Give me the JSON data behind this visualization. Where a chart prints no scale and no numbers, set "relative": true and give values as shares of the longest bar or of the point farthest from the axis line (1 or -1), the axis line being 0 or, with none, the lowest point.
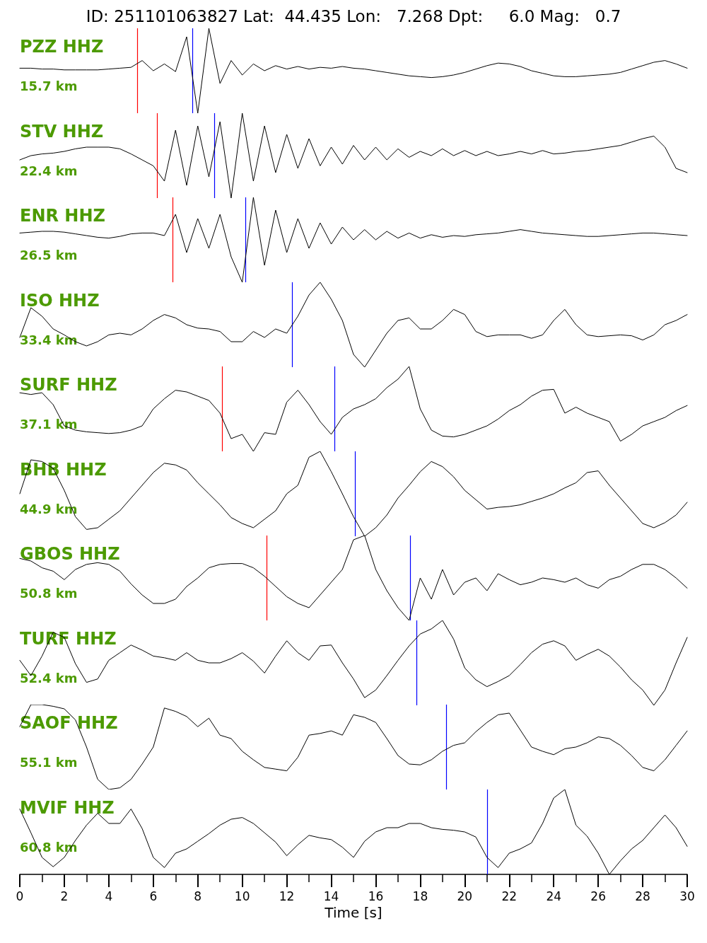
{
  "chart_data": [
    {
      "type": "line",
      "title": "ID: 251101063827 Lat:  44.435 Lon:   7.268 Dpt:     6.0 Mag:   0.7",
      "relative": true,
      "tick_labels": false,
      "xlim": [
        0,
        30
      ],
      "xticks": [
        0,
        2,
        4,
        6,
        8,
        10,
        12,
        14,
        16,
        18,
        20,
        22,
        24,
        26,
        28,
        30
      ],
      "annotations": [
        "PZZ HHZ",
        "15.7 km"
      ],
      "ref_lines": [
        {
          "axis": "x",
          "value": 5.28,
          "color": "#ff0000"
        },
        {
          "axis": "x",
          "value": 7.75,
          "color": "#0000ff"
        }
      ],
      "x": [
        0,
        0.5,
        1,
        1.5,
        2,
        2.5,
        3,
        3.5,
        4,
        4.5,
        5,
        5.5,
        6,
        6.5,
        7,
        7.5,
        8,
        8.5,
        9,
        9.5,
        10,
        10.5,
        11,
        11.5,
        12,
        12.5,
        13,
        13.5,
        14,
        14.5,
        15,
        15.5,
        16,
        16.5,
        17,
        17.5,
        18,
        18.5,
        19,
        19.5,
        20,
        20.5,
        21,
        21.5,
        22,
        22.5,
        23,
        23.5,
        24,
        24.5,
        25,
        25.5,
        26,
        26.5,
        27,
        27.5,
        28,
        28.5,
        29,
        29.5,
        30
      ],
      "series": [
        {
          "color": "#000000",
          "values": [
            0.53,
            0.53,
            0.52,
            0.52,
            0.51,
            0.51,
            0.51,
            0.51,
            0.52,
            0.53,
            0.54,
            0.62,
            0.5,
            0.58,
            0.49,
            0.9,
            0,
            1,
            0.35,
            0.62,
            0.45,
            0.58,
            0.5,
            0.56,
            0.52,
            0.55,
            0.52,
            0.54,
            0.53,
            0.55,
            0.53,
            0.52,
            0.5,
            0.48,
            0.46,
            0.44,
            0.43,
            0.42,
            0.43,
            0.45,
            0.48,
            0.52,
            0.56,
            0.59,
            0.58,
            0.55,
            0.5,
            0.47,
            0.44,
            0.43,
            0.43,
            0.44,
            0.45,
            0.46,
            0.48,
            0.52,
            0.56,
            0.6,
            0.62,
            0.58,
            0.53
          ]
        }
      ]
    },
    {
      "type": "line",
      "relative": true,
      "tick_labels": false,
      "xlim": [
        0,
        30
      ],
      "xticks": [
        0,
        2,
        4,
        6,
        8,
        10,
        12,
        14,
        16,
        18,
        20,
        22,
        24,
        26,
        28,
        30
      ],
      "annotations": [
        "STV HHZ",
        "22.4 km"
      ],
      "ref_lines": [
        {
          "axis": "x",
          "value": 6.17,
          "color": "#ff0000"
        },
        {
          "axis": "x",
          "value": 8.74,
          "color": "#0000ff"
        }
      ],
      "x": [
        0,
        0.5,
        1,
        1.5,
        2,
        2.5,
        3,
        3.5,
        4,
        4.5,
        5,
        5.5,
        6,
        6.5,
        7,
        7.5,
        8,
        8.5,
        9,
        9.5,
        10,
        10.5,
        11,
        11.5,
        12,
        12.5,
        13,
        13.5,
        14,
        14.5,
        15,
        15.5,
        16,
        16.5,
        17,
        17.5,
        18,
        18.5,
        19,
        19.5,
        20,
        20.5,
        21,
        21.5,
        22,
        22.5,
        23,
        23.5,
        24,
        24.5,
        25,
        25.5,
        26,
        26.5,
        27,
        27.5,
        28,
        28.5,
        29,
        29.5,
        30
      ],
      "series": [
        {
          "color": "#000000",
          "values": [
            0.45,
            0.5,
            0.52,
            0.53,
            0.55,
            0.58,
            0.6,
            0.6,
            0.6,
            0.58,
            0.52,
            0.45,
            0.38,
            0.2,
            0.8,
            0.15,
            0.85,
            0.25,
            0.9,
            0,
            1,
            0.2,
            0.85,
            0.3,
            0.75,
            0.35,
            0.7,
            0.38,
            0.6,
            0.4,
            0.62,
            0.45,
            0.6,
            0.45,
            0.58,
            0.48,
            0.55,
            0.5,
            0.58,
            0.5,
            0.56,
            0.5,
            0.55,
            0.5,
            0.52,
            0.55,
            0.52,
            0.56,
            0.52,
            0.53,
            0.55,
            0.56,
            0.58,
            0.6,
            0.62,
            0.66,
            0.7,
            0.73,
            0.6,
            0.35,
            0.3
          ]
        }
      ]
    },
    {
      "type": "line",
      "relative": true,
      "tick_labels": false,
      "xlim": [
        0,
        30
      ],
      "xticks": [
        0,
        2,
        4,
        6,
        8,
        10,
        12,
        14,
        16,
        18,
        20,
        22,
        24,
        26,
        28,
        30
      ],
      "annotations": [
        "ENR HHZ",
        "26.5 km"
      ],
      "ref_lines": [
        {
          "axis": "x",
          "value": 6.86,
          "color": "#ff0000"
        },
        {
          "axis": "x",
          "value": 10.14,
          "color": "#0000ff"
        }
      ],
      "x": [
        0,
        0.5,
        1,
        1.5,
        2,
        2.5,
        3,
        3.5,
        4,
        4.5,
        5,
        5.5,
        6,
        6.5,
        7,
        7.5,
        8,
        8.5,
        9,
        9.5,
        10,
        10.5,
        11,
        11.5,
        12,
        12.5,
        13,
        13.5,
        14,
        14.5,
        15,
        15.5,
        16,
        16.5,
        17,
        17.5,
        18,
        18.5,
        19,
        19.5,
        20,
        20.5,
        21,
        21.5,
        22,
        22.5,
        23,
        23.5,
        24,
        24.5,
        25,
        25.5,
        26,
        26.5,
        27,
        27.5,
        28,
        28.5,
        29,
        29.5,
        30
      ],
      "series": [
        {
          "color": "#000000",
          "values": [
            0.58,
            0.59,
            0.6,
            0.6,
            0.59,
            0.57,
            0.55,
            0.53,
            0.52,
            0.54,
            0.57,
            0.58,
            0.58,
            0.55,
            0.8,
            0.35,
            0.75,
            0.4,
            0.8,
            0.3,
            0,
            1,
            0.2,
            0.85,
            0.35,
            0.75,
            0.4,
            0.7,
            0.45,
            0.65,
            0.5,
            0.62,
            0.5,
            0.6,
            0.52,
            0.58,
            0.52,
            0.56,
            0.53,
            0.55,
            0.54,
            0.56,
            0.57,
            0.58,
            0.6,
            0.62,
            0.6,
            0.58,
            0.57,
            0.56,
            0.55,
            0.54,
            0.54,
            0.55,
            0.56,
            0.57,
            0.58,
            0.58,
            0.57,
            0.56,
            0.55
          ]
        }
      ]
    },
    {
      "type": "line",
      "relative": true,
      "tick_labels": false,
      "xlim": [
        0,
        30
      ],
      "xticks": [
        0,
        2,
        4,
        6,
        8,
        10,
        12,
        14,
        16,
        18,
        20,
        22,
        24,
        26,
        28,
        30
      ],
      "annotations": [
        "ISO HHZ",
        "33.4 km"
      ],
      "ref_lines": [
        {
          "axis": "x",
          "value": 12.23,
          "color": "#0000ff"
        }
      ],
      "x": [
        0,
        0.5,
        1,
        1.5,
        2,
        2.5,
        3,
        3.5,
        4,
        4.5,
        5,
        5.5,
        6,
        6.5,
        7,
        7.5,
        8,
        8.5,
        9,
        9.5,
        10,
        10.5,
        11,
        11.5,
        12,
        12.5,
        13,
        13.5,
        14,
        14.5,
        15,
        15.5,
        16,
        16.5,
        17,
        17.5,
        18,
        18.5,
        19,
        19.5,
        20,
        20.5,
        21,
        21.5,
        22,
        22.5,
        23,
        23.5,
        24,
        24.5,
        25,
        25.5,
        26,
        26.5,
        27,
        27.5,
        28,
        28.5,
        29,
        29.5,
        30
      ],
      "series": [
        {
          "color": "#000000",
          "values": [
            0.35,
            0.7,
            0.6,
            0.45,
            0.38,
            0.3,
            0.25,
            0.3,
            0.38,
            0.4,
            0.38,
            0.45,
            0.55,
            0.62,
            0.58,
            0.5,
            0.46,
            0.45,
            0.42,
            0.3,
            0.3,
            0.42,
            0.35,
            0.45,
            0.4,
            0.6,
            0.85,
            1,
            0.8,
            0.55,
            0.15,
            0,
            0.2,
            0.4,
            0.55,
            0.58,
            0.45,
            0.45,
            0.55,
            0.68,
            0.62,
            0.42,
            0.36,
            0.38,
            0.38,
            0.38,
            0.34,
            0.38,
            0.55,
            0.68,
            0.5,
            0.38,
            0.36,
            0.37,
            0.38,
            0.37,
            0.32,
            0.38,
            0.5,
            0.55,
            0.62
          ]
        }
      ]
    },
    {
      "type": "line",
      "relative": true,
      "tick_labels": false,
      "xlim": [
        0,
        30
      ],
      "xticks": [
        0,
        2,
        4,
        6,
        8,
        10,
        12,
        14,
        16,
        18,
        20,
        22,
        24,
        26,
        28,
        30
      ],
      "annotations": [
        "SURF HHZ",
        "37.1 km"
      ],
      "ref_lines": [
        {
          "axis": "x",
          "value": 9.09,
          "color": "#ff0000"
        },
        {
          "axis": "x",
          "value": 14.14,
          "color": "#0000ff"
        }
      ],
      "x": [
        0,
        0.5,
        1,
        1.5,
        2,
        2.5,
        3,
        3.5,
        4,
        4.5,
        5,
        5.5,
        6,
        6.5,
        7,
        7.5,
        8,
        8.5,
        9,
        9.5,
        10,
        10.5,
        11,
        11.5,
        12,
        12.5,
        13,
        13.5,
        14,
        14.5,
        15,
        15.5,
        16,
        16.5,
        17,
        17.5,
        18,
        18.5,
        19,
        19.5,
        20,
        20.5,
        21,
        21.5,
        22,
        22.5,
        23,
        23.5,
        24,
        24.5,
        25,
        25.5,
        26,
        26.5,
        27,
        27.5,
        28,
        28.5,
        29,
        29.5,
        30
      ],
      "series": [
        {
          "color": "#000000",
          "values": [
            0.69,
            0.67,
            0.69,
            0.55,
            0.3,
            0.25,
            0.23,
            0.22,
            0.21,
            0.22,
            0.25,
            0.3,
            0.5,
            0.62,
            0.72,
            0.7,
            0.65,
            0.6,
            0.45,
            0.15,
            0.2,
            0,
            0.22,
            0.2,
            0.58,
            0.72,
            0.55,
            0.35,
            0.2,
            0.4,
            0.5,
            0.55,
            0.62,
            0.75,
            0.85,
            1,
            0.5,
            0.25,
            0.18,
            0.17,
            0.2,
            0.25,
            0.3,
            0.38,
            0.48,
            0.55,
            0.65,
            0.72,
            0.73,
            0.45,
            0.52,
            0.45,
            0.4,
            0.35,
            0.12,
            0.2,
            0.3,
            0.35,
            0.4,
            0.48,
            0.54
          ]
        }
      ]
    },
    {
      "type": "line",
      "relative": true,
      "tick_labels": false,
      "xlim": [
        0,
        30
      ],
      "xticks": [
        0,
        2,
        4,
        6,
        8,
        10,
        12,
        14,
        16,
        18,
        20,
        22,
        24,
        26,
        28,
        30
      ],
      "annotations": [
        "BHB HHZ",
        "44.9 km"
      ],
      "ref_lines": [
        {
          "axis": "x",
          "value": 15.06,
          "color": "#0000ff"
        }
      ],
      "x": [
        0,
        0.5,
        1,
        1.5,
        2,
        2.5,
        3,
        3.5,
        4,
        4.5,
        5,
        5.5,
        6,
        6.5,
        7,
        7.5,
        8,
        8.5,
        9,
        9.5,
        10,
        10.5,
        11,
        11.5,
        12,
        12.5,
        13,
        13.5,
        14,
        14.5,
        15,
        15.5,
        16,
        16.5,
        17,
        17.5,
        18,
        18.5,
        19,
        19.5,
        20,
        20.5,
        21,
        21.5,
        22,
        22.5,
        23,
        23.5,
        24,
        24.5,
        25,
        25.5,
        26,
        26.5,
        27,
        27.5,
        28,
        28.5,
        29,
        29.5,
        30
      ],
      "series": [
        {
          "color": "#000000",
          "values": [
            0.5,
            0.9,
            0.88,
            0.8,
            0.54,
            0.23,
            0.08,
            0.1,
            0.2,
            0.3,
            0.45,
            0.6,
            0.75,
            0.86,
            0.84,
            0.78,
            0.63,
            0.5,
            0.37,
            0.22,
            0.15,
            0.1,
            0.2,
            0.3,
            0.5,
            0.6,
            0.93,
            1,
            0.76,
            0.5,
            0.23,
            0,
            0.1,
            0.25,
            0.45,
            0.6,
            0.76,
            0.88,
            0.82,
            0.7,
            0.54,
            0.43,
            0.32,
            0.34,
            0.35,
            0.37,
            0.41,
            0.45,
            0.5,
            0.57,
            0.63,
            0.75,
            0.77,
            0.6,
            0.45,
            0.3,
            0.15,
            0.1,
            0.16,
            0.25,
            0.4
          ]
        }
      ]
    },
    {
      "type": "line",
      "relative": true,
      "tick_labels": false,
      "xlim": [
        0,
        30
      ],
      "xticks": [
        0,
        2,
        4,
        6,
        8,
        10,
        12,
        14,
        16,
        18,
        20,
        22,
        24,
        26,
        28,
        30
      ],
      "annotations": [
        "GBOS HHZ",
        "50.8 km"
      ],
      "ref_lines": [
        {
          "axis": "x",
          "value": 11.09,
          "color": "#ff0000"
        },
        {
          "axis": "x",
          "value": 17.54,
          "color": "#0000ff"
        }
      ],
      "x": [
        0,
        0.5,
        1,
        1.5,
        2,
        2.5,
        3,
        3.5,
        4,
        4.5,
        5,
        5.5,
        6,
        6.5,
        7,
        7.5,
        8,
        8.5,
        9,
        9.5,
        10,
        10.5,
        11,
        11.5,
        12,
        12.5,
        13,
        13.5,
        14,
        14.5,
        15,
        15.5,
        16,
        16.5,
        17,
        17.5,
        18,
        18.5,
        19,
        19.5,
        20,
        20.5,
        21,
        21.5,
        22,
        22.5,
        23,
        23.5,
        24,
        24.5,
        25,
        25.5,
        26,
        26.5,
        27,
        27.5,
        28,
        28.5,
        29,
        29.5,
        30
      ],
      "series": [
        {
          "color": "#000000",
          "values": [
            0.73,
            0.7,
            0.62,
            0.58,
            0.48,
            0.6,
            0.66,
            0.68,
            0.66,
            0.58,
            0.43,
            0.3,
            0.2,
            0.2,
            0.25,
            0.4,
            0.5,
            0.62,
            0.66,
            0.67,
            0.67,
            0.62,
            0.52,
            0.4,
            0.28,
            0.2,
            0.15,
            0.3,
            0.45,
            0.6,
            0.95,
            1,
            0.6,
            0.35,
            0.15,
            0,
            0.5,
            0.25,
            0.6,
            0.3,
            0.45,
            0.5,
            0.35,
            0.55,
            0.48,
            0.42,
            0.45,
            0.5,
            0.48,
            0.45,
            0.5,
            0.42,
            0.38,
            0.48,
            0.52,
            0.6,
            0.66,
            0.66,
            0.6,
            0.5,
            0.38
          ]
        }
      ]
    },
    {
      "type": "line",
      "relative": true,
      "tick_labels": false,
      "xlim": [
        0,
        30
      ],
      "xticks": [
        0,
        2,
        4,
        6,
        8,
        10,
        12,
        14,
        16,
        18,
        20,
        22,
        24,
        26,
        28,
        30
      ],
      "annotations": [
        "TURF HHZ",
        "52.4 km"
      ],
      "ref_lines": [
        {
          "axis": "x",
          "value": 17.83,
          "color": "#0000ff"
        }
      ],
      "x": [
        0,
        0.5,
        1,
        1.5,
        2,
        2.5,
        3,
        3.5,
        4,
        4.5,
        5,
        5.5,
        6,
        6.5,
        7,
        7.5,
        8,
        8.5,
        9,
        9.5,
        10,
        10.5,
        11,
        11.5,
        12,
        12.5,
        13,
        13.5,
        14,
        14.5,
        15,
        15.5,
        16,
        16.5,
        17,
        17.5,
        18,
        18.5,
        19,
        19.5,
        20,
        20.5,
        21,
        21.5,
        22,
        22.5,
        23,
        23.5,
        24,
        24.5,
        25,
        25.5,
        26,
        26.5,
        27,
        27.5,
        28,
        28.5,
        29,
        29.5,
        30
      ],
      "series": [
        {
          "color": "#000000",
          "values": [
            0.53,
            0.35,
            0.58,
            0.86,
            0.8,
            0.49,
            0.27,
            0.31,
            0.53,
            0.62,
            0.71,
            0.65,
            0.58,
            0.56,
            0.53,
            0.62,
            0.53,
            0.5,
            0.5,
            0.55,
            0.62,
            0.52,
            0.38,
            0.58,
            0.76,
            0.62,
            0.53,
            0.7,
            0.71,
            0.5,
            0.31,
            0.09,
            0.18,
            0.35,
            0.53,
            0.7,
            0.84,
            0.9,
            1,
            0.78,
            0.44,
            0.3,
            0.22,
            0.28,
            0.35,
            0.48,
            0.62,
            0.72,
            0.76,
            0.7,
            0.53,
            0.6,
            0.66,
            0.58,
            0.45,
            0.3,
            0.18,
            0,
            0.18,
            0.5,
            0.8
          ]
        }
      ]
    },
    {
      "type": "line",
      "relative": true,
      "tick_labels": false,
      "xlim": [
        0,
        30
      ],
      "xticks": [
        0,
        2,
        4,
        6,
        8,
        10,
        12,
        14,
        16,
        18,
        20,
        22,
        24,
        26,
        28,
        30
      ],
      "annotations": [
        "SAOF HHZ",
        "55.1 km"
      ],
      "ref_lines": [
        {
          "axis": "x",
          "value": 19.16,
          "color": "#0000ff"
        }
      ],
      "x": [
        0,
        0.5,
        1,
        1.5,
        2,
        2.5,
        3,
        3.5,
        4,
        4.5,
        5,
        5.5,
        6,
        6.5,
        7,
        7.5,
        8,
        8.5,
        9,
        9.5,
        10,
        10.5,
        11,
        11.5,
        12,
        12.5,
        13,
        13.5,
        14,
        14.5,
        15,
        15.5,
        16,
        16.5,
        17,
        17.5,
        18,
        18.5,
        19,
        19.5,
        20,
        20.5,
        21,
        21.5,
        22,
        22.5,
        23,
        23.5,
        24,
        24.5,
        25,
        25.5,
        26,
        26.5,
        27,
        27.5,
        28,
        28.5,
        29,
        29.5,
        30
      ],
      "series": [
        {
          "color": "#000000",
          "values": [
            0.74,
            1,
            1,
            0.98,
            0.95,
            0.82,
            0.5,
            0.12,
            0,
            0.02,
            0.12,
            0.3,
            0.5,
            0.96,
            0.92,
            0.86,
            0.74,
            0.84,
            0.64,
            0.6,
            0.45,
            0.35,
            0.26,
            0.24,
            0.22,
            0.38,
            0.64,
            0.66,
            0.69,
            0.64,
            0.88,
            0.85,
            0.79,
            0.6,
            0.4,
            0.3,
            0.29,
            0.35,
            0.45,
            0.52,
            0.55,
            0.68,
            0.79,
            0.88,
            0.9,
            0.7,
            0.5,
            0.45,
            0.41,
            0.48,
            0.5,
            0.55,
            0.62,
            0.6,
            0.52,
            0.4,
            0.26,
            0.22,
            0.35,
            0.52,
            0.69
          ]
        }
      ]
    },
    {
      "type": "line",
      "relative": true,
      "tick_labels": "x",
      "xlim": [
        0,
        30
      ],
      "xlabel": "Time [s]",
      "annotations": [
        "MVIF HHZ",
        "60.8 km"
      ],
      "xticks": [
        0,
        {
          "value": 1,
          "label": null
        },
        2,
        {
          "value": 3,
          "label": null
        },
        4,
        {
          "value": 5,
          "label": null
        },
        6,
        {
          "value": 7,
          "label": null
        },
        8,
        {
          "value": 9,
          "label": null
        },
        10,
        {
          "value": 11,
          "label": null
        },
        12,
        {
          "value": 13,
          "label": null
        },
        14,
        {
          "value": 15,
          "label": null
        },
        16,
        {
          "value": 17,
          "label": null
        },
        18,
        {
          "value": 19,
          "label": null
        },
        20,
        {
          "value": 21,
          "label": null
        },
        22,
        {
          "value": 23,
          "label": null
        },
        24,
        {
          "value": 25,
          "label": null
        },
        26,
        {
          "value": 27,
          "label": null
        },
        28,
        {
          "value": 29,
          "label": null
        },
        30
      ],
      "ref_lines": [
        {
          "axis": "x",
          "value": 21.0,
          "color": "#0000ff"
        }
      ],
      "x": [
        0,
        0.5,
        1,
        1.5,
        2,
        2.5,
        3,
        3.5,
        4,
        4.5,
        5,
        5.5,
        6,
        6.5,
        7,
        7.5,
        8,
        8.5,
        9,
        9.5,
        10,
        10.5,
        11,
        11.5,
        12,
        12.5,
        13,
        13.5,
        14,
        14.5,
        15,
        15.5,
        16,
        16.5,
        17,
        17.5,
        18,
        18.5,
        19,
        19.5,
        20,
        20.5,
        21,
        21.5,
        22,
        22.5,
        23,
        23.5,
        24,
        24.5,
        25,
        25.5,
        26,
        26.5,
        27,
        27.5,
        28,
        28.5,
        29,
        29.5,
        30
      ],
      "series": [
        {
          "color": "#000000",
          "values": [
            0.77,
            0.49,
            0.2,
            0.09,
            0.2,
            0.4,
            0.58,
            0.72,
            0.6,
            0.6,
            0.77,
            0.54,
            0.2,
            0.08,
            0.25,
            0.3,
            0.39,
            0.48,
            0.58,
            0.65,
            0.67,
            0.6,
            0.49,
            0.38,
            0.22,
            0.35,
            0.46,
            0.43,
            0.41,
            0.32,
            0.2,
            0.39,
            0.5,
            0.55,
            0.55,
            0.6,
            0.6,
            0.55,
            0.53,
            0.52,
            0.5,
            0.44,
            0.2,
            0.08,
            0.25,
            0.3,
            0.37,
            0.6,
            0.9,
            1,
            0.58,
            0.45,
            0.25,
            0,
            0.16,
            0.3,
            0.4,
            0.55,
            0.7,
            0.55,
            0.33
          ]
        }
      ]
    }
  ]
}
